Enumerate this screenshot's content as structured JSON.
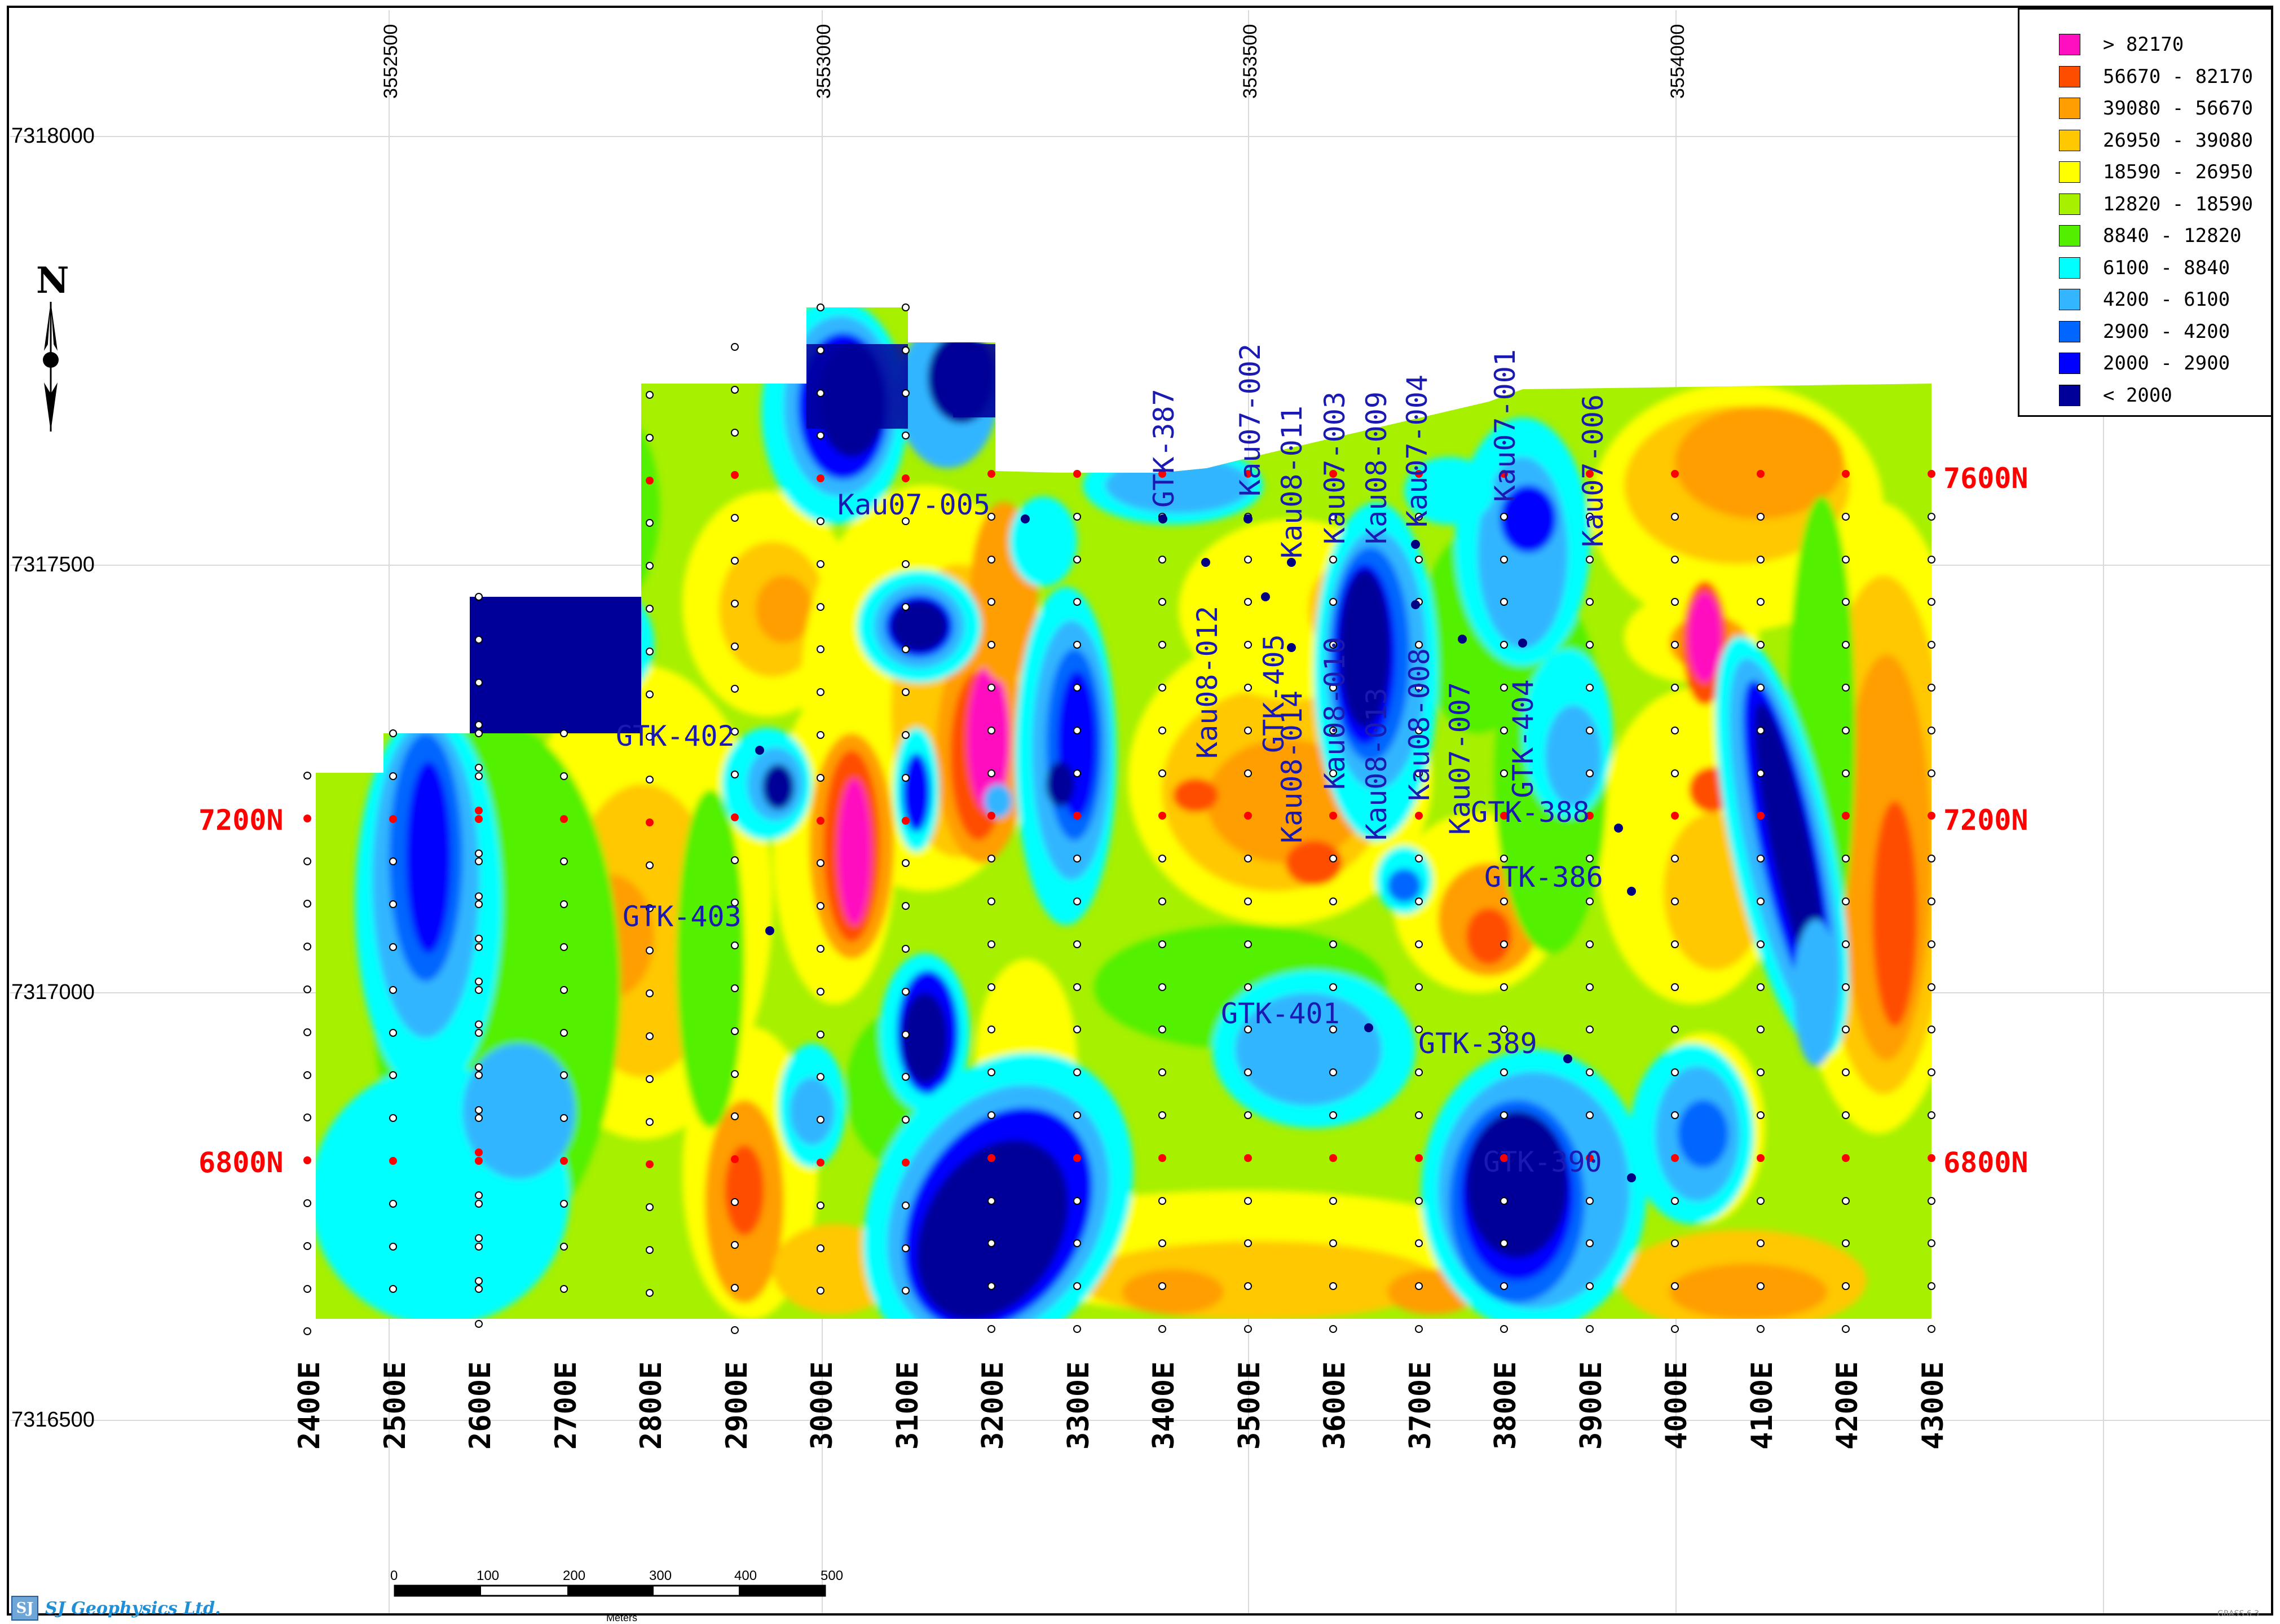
{
  "map": {
    "north_label": "N",
    "company": "SJ Geophysics Ltd.",
    "software": "GRASS 6.3",
    "easting_coords": [
      "3552500",
      "3553000",
      "3553500",
      "3554000"
    ],
    "northing_coords": [
      "7318000",
      "7317500",
      "7317000",
      "7316500"
    ],
    "line_labels": [
      "7600N",
      "7200N",
      "6800N"
    ],
    "station_labels": [
      "2400E",
      "2500E",
      "2600E",
      "2700E",
      "2800E",
      "2900E",
      "3000E",
      "3100E",
      "3200E",
      "3300E",
      "3400E",
      "3500E",
      "3600E",
      "3700E",
      "3800E",
      "3900E",
      "4000E",
      "4100E",
      "4200E",
      "4300E"
    ],
    "scale_bar": {
      "ticks": [
        "0",
        "100",
        "200",
        "300",
        "400",
        "500"
      ],
      "unit": "Meters"
    },
    "drill_holes": [
      {
        "name": "Kau07-005",
        "orientation": "horizontal"
      },
      {
        "name": "GTK-402",
        "orientation": "horizontal"
      },
      {
        "name": "GTK-403",
        "orientation": "horizontal"
      },
      {
        "name": "GTK-388",
        "orientation": "horizontal"
      },
      {
        "name": "GTK-386",
        "orientation": "horizontal"
      },
      {
        "name": "GTK-401",
        "orientation": "horizontal"
      },
      {
        "name": "GTK-389",
        "orientation": "horizontal"
      },
      {
        "name": "GTK-390",
        "orientation": "horizontal"
      },
      {
        "name": "GTK-387",
        "orientation": "vertical"
      },
      {
        "name": "Kau07-002",
        "orientation": "vertical"
      },
      {
        "name": "Kau08-011",
        "orientation": "vertical"
      },
      {
        "name": "Kau07-003",
        "orientation": "vertical"
      },
      {
        "name": "Kau08-009",
        "orientation": "vertical"
      },
      {
        "name": "Kau07-004",
        "orientation": "vertical"
      },
      {
        "name": "Kau07-001",
        "orientation": "vertical"
      },
      {
        "name": "Kau07-006",
        "orientation": "vertical"
      },
      {
        "name": "Kau08-012",
        "orientation": "vertical"
      },
      {
        "name": "GTK-405",
        "orientation": "vertical"
      },
      {
        "name": "Kau08-014",
        "orientation": "vertical"
      },
      {
        "name": "Kau08-010",
        "orientation": "vertical"
      },
      {
        "name": "Kau08-013",
        "orientation": "vertical"
      },
      {
        "name": "Kau08-008",
        "orientation": "vertical"
      },
      {
        "name": "Kau07-007",
        "orientation": "vertical"
      },
      {
        "name": "GTK-404",
        "orientation": "vertical"
      }
    ]
  },
  "legend": {
    "items": [
      {
        "label": "> 82170",
        "color": "#ff0fbf"
      },
      {
        "label": "56670 - 82170",
        "color": "#ff4d00"
      },
      {
        "label": "39080 - 56670",
        "color": "#ff9e00"
      },
      {
        "label": "26950 - 39080",
        "color": "#ffc800"
      },
      {
        "label": "18590 - 26950",
        "color": "#ffff00"
      },
      {
        "label": "12820 - 18590",
        "color": "#a6f000"
      },
      {
        "label": "8840 - 12820",
        "color": "#52f000"
      },
      {
        "label": "6100 - 8840",
        "color": "#00ffff"
      },
      {
        "label": "4200 - 6100",
        "color": "#33b5ff"
      },
      {
        "label": "2900 - 4200",
        "color": "#0066ff"
      },
      {
        "label": "2000 - 2900",
        "color": "#0000ff"
      },
      {
        "label": "< 2000",
        "color": "#000099"
      }
    ]
  },
  "colors": {
    "line_label": "#ff0000",
    "drill_label": "#1a1ab3",
    "grid_line": "#d9d9d9"
  }
}
